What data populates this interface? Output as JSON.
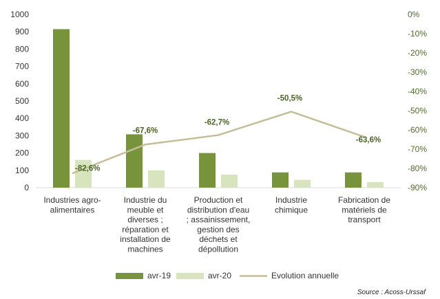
{
  "chart_data": {
    "type": "bar",
    "categories": [
      [
        "Industries agro-",
        "alimentaires"
      ],
      [
        "Industrie du",
        "meuble et",
        "diverses ;",
        "réparation et",
        "installation de",
        "machines"
      ],
      [
        "Production et",
        "distribution d'eau",
        "; assainissement,",
        "gestion des",
        "déchets et",
        "dépollution"
      ],
      [
        "Industrie",
        "chimique"
      ],
      [
        "Fabrication de",
        "matériels de",
        "transport"
      ]
    ],
    "series": [
      {
        "name": "avr-19",
        "type": "bar",
        "values": [
          915,
          308,
          200,
          88,
          88
        ],
        "color": "#77933c"
      },
      {
        "name": "avr-20",
        "type": "bar",
        "values": [
          160,
          100,
          75,
          45,
          32
        ],
        "color": "#d7e4bd"
      },
      {
        "name": "Evolution annuelle",
        "type": "line",
        "axis": "right",
        "values": [
          -82.6,
          -67.6,
          -62.7,
          -50.5,
          -63.6
        ],
        "labels": [
          "-82,6%",
          "-67,6%",
          "-62,7%",
          "-50,5%",
          "-63,6%"
        ],
        "color": "#c4bd97"
      }
    ],
    "left_axis": {
      "ylim": [
        0,
        1000
      ],
      "ticks": [
        "0",
        "100",
        "200",
        "300",
        "400",
        "500",
        "600",
        "700",
        "800",
        "900",
        "1000"
      ]
    },
    "right_axis": {
      "ylim": [
        -90,
        0
      ],
      "ticks": [
        "0%",
        "-10%",
        "-20%",
        "-30%",
        "-40%",
        "-50%",
        "-60%",
        "-70%",
        "-80%",
        "-90%"
      ]
    },
    "grid": false,
    "legend_position": "bottom",
    "source": "Source : Acoss-Urssaf"
  }
}
